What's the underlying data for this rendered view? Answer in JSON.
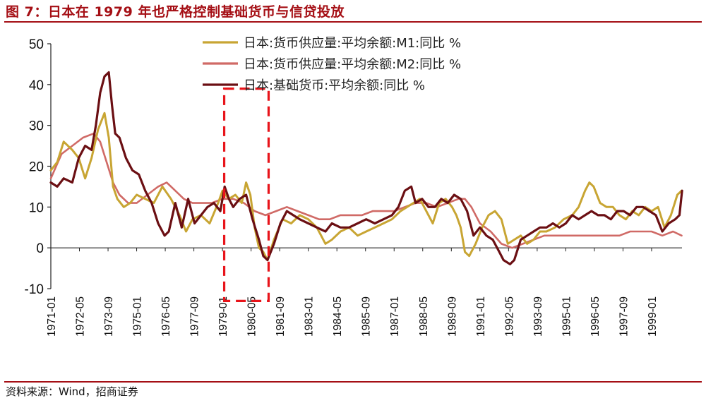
{
  "title": "图 7：日本在 1979 年也严格控制基础货币与信贷投放",
  "source": "资料来源：Wind，招商证券",
  "colors": {
    "m1": "#c8a533",
    "m2": "#d06a66",
    "base": "#6b0f13",
    "highlight": "#e8141a",
    "accent": "#a50f15"
  },
  "chart_data": {
    "type": "line",
    "title": "图 7：日本在 1979 年也严格控制基础货币与信贷投放",
    "xlabel": "",
    "ylabel": "",
    "ylim": [
      -10,
      50
    ],
    "yticks": [
      -10,
      0,
      10,
      20,
      30,
      40,
      50
    ],
    "xrange": [
      1971.0,
      2000.417
    ],
    "x_tick_labels": [
      "1971-01",
      "1972-05",
      "1973-09",
      "1975-01",
      "1976-05",
      "1977-09",
      "1979-01",
      "1980-05",
      "1981-09",
      "1983-01",
      "1984-05",
      "1985-09",
      "1987-01",
      "1988-05",
      "1989-09",
      "1991-01",
      "1992-05",
      "1993-09",
      "1995-01",
      "1996-05",
      "1997-09",
      "1999-01"
    ],
    "x_tick_values": [
      1971.0,
      1972.333,
      1973.667,
      1975.0,
      1976.333,
      1977.667,
      1979.0,
      1980.333,
      1981.667,
      1983.0,
      1984.333,
      1985.667,
      1987.0,
      1988.333,
      1989.667,
      1991.0,
      1992.333,
      1993.667,
      1995.0,
      1996.333,
      1997.667,
      1999.0
    ],
    "legend_position": "top",
    "highlight_box": {
      "x_from": 1979.08,
      "x_to": 1981.15,
      "y_from": -13,
      "y_to": 39,
      "style": "dashed"
    },
    "series": [
      {
        "name": "日本:货币供应量:平均余额:M1:同比 %",
        "color_key": "m1",
        "x": [
          1971.0,
          1971.3,
          1971.6,
          1972.0,
          1972.3,
          1972.6,
          1972.9,
          1973.2,
          1973.5,
          1973.7,
          1973.9,
          1974.1,
          1974.4,
          1974.7,
          1975.0,
          1975.4,
          1975.8,
          1976.2,
          1976.6,
          1977.0,
          1977.3,
          1977.6,
          1978.0,
          1978.4,
          1978.8,
          1979.0,
          1979.3,
          1979.6,
          1979.9,
          1980.1,
          1980.3,
          1980.5,
          1980.7,
          1980.9,
          1981.1,
          1981.4,
          1981.8,
          1982.2,
          1982.6,
          1983.0,
          1983.4,
          1983.8,
          1984.1,
          1984.5,
          1984.9,
          1985.3,
          1985.7,
          1986.1,
          1986.5,
          1986.9,
          1987.3,
          1987.6,
          1987.9,
          1988.2,
          1988.5,
          1988.8,
          1989.1,
          1989.4,
          1989.7,
          1989.9,
          1990.1,
          1990.3,
          1990.5,
          1990.8,
          1991.1,
          1991.4,
          1991.7,
          1992.0,
          1992.3,
          1992.6,
          1992.9,
          1993.2,
          1993.5,
          1993.8,
          1994.1,
          1994.5,
          1994.9,
          1995.3,
          1995.6,
          1995.9,
          1996.1,
          1996.3,
          1996.6,
          1996.9,
          1997.2,
          1997.5,
          1997.8,
          1998.1,
          1998.4,
          1998.7,
          1999.0,
          1999.3,
          1999.6,
          1999.9,
          2000.2,
          2000.4
        ],
        "values": [
          19,
          21,
          26,
          24,
          22,
          17,
          22,
          29,
          33,
          27,
          15,
          12,
          10,
          11,
          13,
          12,
          11,
          15,
          12,
          8,
          4,
          7,
          8,
          6,
          11,
          14,
          12,
          13,
          11,
          16,
          13,
          5,
          0,
          -1,
          -3,
          2,
          7,
          6,
          8,
          7,
          5,
          1,
          2,
          4,
          5,
          3,
          4,
          5,
          6,
          7,
          9,
          10,
          11,
          12,
          9,
          6,
          11,
          12,
          10,
          8,
          5,
          -1,
          -2,
          1,
          5,
          8,
          9,
          7,
          1,
          2,
          3,
          1,
          2,
          4,
          4,
          5,
          7,
          8,
          10,
          14,
          16,
          15,
          11,
          10,
          10,
          8,
          7,
          9,
          8,
          10,
          9,
          10,
          5,
          8,
          13,
          14
        ]
      },
      {
        "name": "日本:货币供应量:平均余额:M2:同比 %",
        "color_key": "m2",
        "x": [
          1971.0,
          1971.5,
          1972.0,
          1972.5,
          1973.0,
          1973.3,
          1973.6,
          1973.9,
          1974.2,
          1974.6,
          1975.0,
          1975.5,
          1976.0,
          1976.4,
          1976.8,
          1977.2,
          1977.6,
          1978.0,
          1978.5,
          1979.0,
          1979.5,
          1980.0,
          1980.5,
          1981.0,
          1981.5,
          1982.0,
          1982.5,
          1983.0,
          1983.5,
          1984.0,
          1984.5,
          1985.0,
          1985.5,
          1986.0,
          1986.5,
          1987.0,
          1987.5,
          1988.0,
          1988.5,
          1989.0,
          1989.5,
          1990.0,
          1990.3,
          1990.6,
          1991.0,
          1991.5,
          1992.0,
          1992.5,
          1993.0,
          1993.5,
          1994.0,
          1994.5,
          1995.0,
          1995.5,
          1996.0,
          1996.5,
          1997.0,
          1997.5,
          1998.0,
          1998.5,
          1999.0,
          1999.5,
          2000.0,
          2000.4
        ],
        "values": [
          17,
          23,
          25,
          27,
          28,
          26,
          21,
          16,
          13,
          11,
          11,
          13,
          15,
          16,
          14,
          12,
          11,
          11,
          11,
          12,
          12,
          11,
          9,
          8,
          9,
          10,
          9,
          8,
          7,
          7,
          8,
          8,
          8,
          9,
          9,
          9,
          10,
          11,
          11,
          10,
          11,
          12,
          12,
          10,
          6,
          4,
          1,
          0,
          1,
          2,
          3,
          3,
          3,
          3,
          3,
          3,
          3,
          3,
          4,
          4,
          4,
          3,
          4,
          3
        ]
      },
      {
        "name": "日本:基础货币:平均余额:同比 %",
        "color_key": "base",
        "x": [
          1971.0,
          1971.3,
          1971.6,
          1972.0,
          1972.3,
          1972.6,
          1972.9,
          1973.1,
          1973.3,
          1973.5,
          1973.7,
          1973.85,
          1974.0,
          1974.2,
          1974.5,
          1974.8,
          1975.1,
          1975.4,
          1975.7,
          1976.0,
          1976.3,
          1976.5,
          1976.8,
          1977.1,
          1977.4,
          1977.7,
          1978.0,
          1978.3,
          1978.6,
          1978.9,
          1979.1,
          1979.3,
          1979.5,
          1979.8,
          1980.1,
          1980.4,
          1980.7,
          1980.9,
          1981.1,
          1981.4,
          1981.7,
          1982.0,
          1982.3,
          1982.6,
          1983.0,
          1983.4,
          1983.8,
          1984.1,
          1984.5,
          1984.9,
          1985.3,
          1985.7,
          1986.1,
          1986.5,
          1986.9,
          1987.2,
          1987.5,
          1987.8,
          1988.0,
          1988.3,
          1988.6,
          1988.9,
          1989.2,
          1989.5,
          1989.8,
          1990.1,
          1990.4,
          1990.7,
          1991.0,
          1991.3,
          1991.6,
          1991.9,
          1992.1,
          1992.4,
          1992.6,
          1992.9,
          1993.2,
          1993.5,
          1993.8,
          1994.1,
          1994.4,
          1994.7,
          1995.0,
          1995.3,
          1995.6,
          1995.9,
          1996.2,
          1996.5,
          1996.8,
          1997.1,
          1997.4,
          1997.7,
          1998.0,
          1998.3,
          1998.6,
          1998.9,
          1999.2,
          1999.5,
          1999.8,
          2000.1,
          2000.3,
          2000.42
        ],
        "values": [
          16,
          15,
          17,
          16,
          22,
          25,
          24,
          30,
          38,
          42,
          43,
          35,
          28,
          27,
          22,
          19,
          18,
          14,
          11,
          6,
          3,
          4,
          11,
          5,
          12,
          6,
          8,
          10,
          11,
          9,
          15,
          12,
          10,
          12,
          13,
          7,
          2,
          -2,
          -3,
          1,
          6,
          9,
          8,
          7,
          6,
          5,
          4,
          6,
          5,
          5,
          6,
          7,
          6,
          7,
          8,
          10,
          14,
          15,
          11,
          12,
          10,
          10,
          12,
          11,
          13,
          12,
          9,
          3,
          5,
          3,
          2,
          -1,
          -3,
          -4,
          -3,
          2,
          3,
          4,
          5,
          5,
          6,
          5,
          6,
          8,
          7,
          8,
          9,
          8,
          8,
          7,
          9,
          9,
          8,
          10,
          10,
          9,
          8,
          4,
          6,
          7,
          8,
          14
        ]
      }
    ]
  }
}
